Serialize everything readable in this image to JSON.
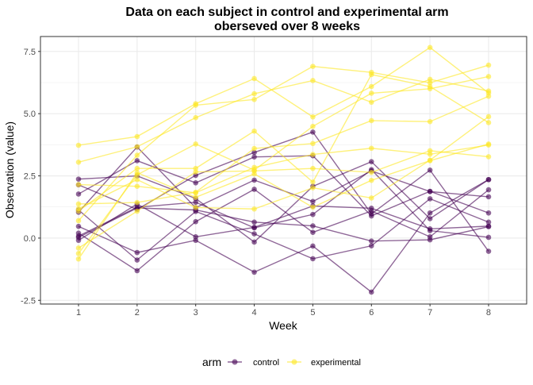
{
  "chart_data": {
    "type": "line",
    "title": "Data on each subject in control and experimental arm",
    "subtitle": "oberseved over 8 weeks",
    "xlabel": "Week",
    "ylabel": "Observation (value)",
    "x": [
      1,
      2,
      3,
      4,
      5,
      6,
      7,
      8
    ],
    "x_tick_labels": [
      "1",
      "2",
      "3",
      "4",
      "5",
      "6",
      "7",
      "8"
    ],
    "xlim": [
      0.35,
      8.65
    ],
    "ylim": [
      -2.65,
      8.1
    ],
    "y_ticks": [
      -2.5,
      0.0,
      2.5,
      5.0,
      7.5
    ],
    "y_tick_labels": [
      "-2.5",
      "0.0",
      "2.5",
      "5.0",
      "7.5"
    ],
    "grid": true,
    "legend": {
      "title": "arm",
      "position": "bottom",
      "entries": [
        {
          "label": "control",
          "color": "#440154"
        },
        {
          "label": "experimental",
          "color": "#FDE725"
        }
      ]
    },
    "series": [
      {
        "group": "control",
        "values": [
          0.2,
          -1.31,
          0.66,
          1.96,
          0.23,
          1.09,
          0.05,
          1.94
        ]
      },
      {
        "group": "control",
        "values": [
          1.13,
          -0.88,
          1.07,
          0.17,
          -0.83,
          -0.31,
          1.58,
          0.64
        ]
      },
      {
        "group": "control",
        "values": [
          1.77,
          3.11,
          2.22,
          3.26,
          3.31,
          0.89,
          1.88,
          1.01
        ]
      },
      {
        "group": "control",
        "values": [
          1.04,
          3.66,
          1.22,
          2.33,
          1.47,
          2.7,
          1.87,
          1.66
        ]
      },
      {
        "group": "control",
        "values": [
          0.47,
          -0.58,
          -0.09,
          -1.37,
          -0.32,
          -2.17,
          1.01,
          2.35
        ]
      },
      {
        "group": "control",
        "values": [
          2.37,
          2.5,
          1.59,
          -0.16,
          2.08,
          3.07,
          0.78,
          2.35
        ]
      },
      {
        "group": "control",
        "values": [
          0.03,
          1.21,
          1.13,
          0.64,
          0.49,
          -0.12,
          -0.07,
          0.46
        ]
      },
      {
        "group": "control",
        "values": [
          -0.09,
          1.37,
          0.05,
          0.43,
          1.29,
          1.2,
          0.37,
          0.48
        ]
      },
      {
        "group": "control",
        "values": [
          0.08,
          1.24,
          1.44,
          0.41,
          0.95,
          2.75,
          0.3,
          0.03
        ]
      },
      {
        "group": "control",
        "values": [
          2.14,
          1.15,
          2.52,
          3.44,
          4.26,
          0.97,
          2.73,
          -0.53
        ]
      },
      {
        "group": "experimental",
        "values": [
          3.05,
          3.67,
          4.84,
          5.8,
          6.33,
          5.46,
          6.38,
          5.91
        ]
      },
      {
        "group": "experimental",
        "values": [
          -0.84,
          2.63,
          1.64,
          2.58,
          1.24,
          2.32,
          3.11,
          3.78
        ]
      },
      {
        "group": "experimental",
        "values": [
          2.15,
          2.08,
          1.82,
          2.84,
          3.36,
          3.61,
          3.37,
          3.74
        ]
      },
      {
        "group": "experimental",
        "values": [
          -0.62,
          2.54,
          3.78,
          2.73,
          4.49,
          5.82,
          6.0,
          6.49
        ]
      },
      {
        "group": "experimental",
        "values": [
          0.7,
          3.33,
          5.34,
          5.57,
          6.9,
          6.66,
          6.24,
          6.95
        ]
      },
      {
        "group": "experimental",
        "values": [
          3.73,
          4.08,
          5.4,
          6.41,
          4.87,
          6.09,
          7.66,
          5.83
        ]
      },
      {
        "group": "experimental",
        "values": [
          1.18,
          2.35,
          1.23,
          1.17,
          2.02,
          1.61,
          3.13,
          4.88
        ]
      },
      {
        "group": "experimental",
        "values": [
          1.37,
          1.43,
          1.84,
          3.6,
          3.8,
          4.72,
          4.68,
          5.7
        ]
      },
      {
        "group": "experimental",
        "values": [
          -0.4,
          1.08,
          2.66,
          2.7,
          2.8,
          2.64,
          3.51,
          3.27
        ]
      },
      {
        "group": "experimental",
        "values": [
          1.09,
          2.8,
          2.8,
          4.3,
          2.25,
          6.57,
          6.09,
          4.64
        ]
      }
    ]
  }
}
